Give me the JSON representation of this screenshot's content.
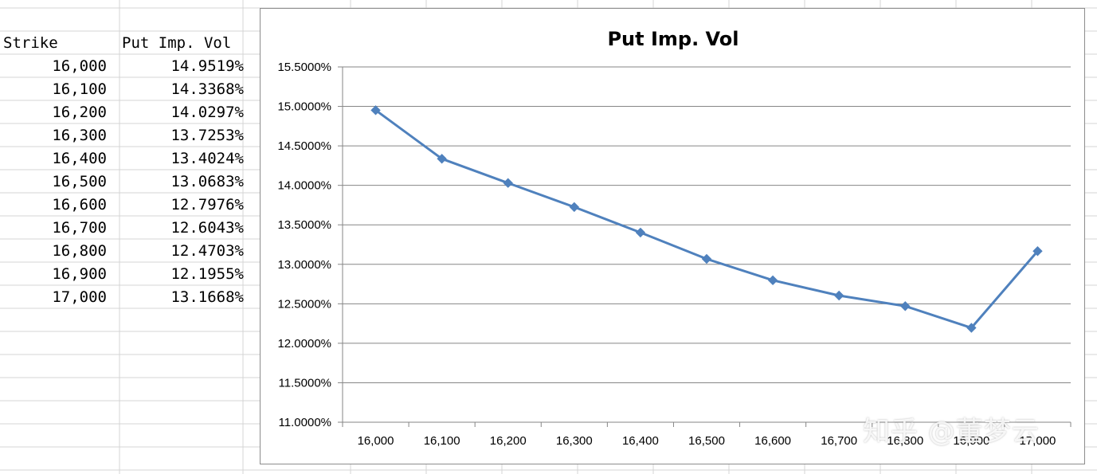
{
  "table": {
    "header_strike": "Strike",
    "header_vol": "Put Imp. Vol",
    "rows": [
      {
        "strike": "16,000",
        "vol": "14.9519%"
      },
      {
        "strike": "16,100",
        "vol": "14.3368%"
      },
      {
        "strike": "16,200",
        "vol": "14.0297%"
      },
      {
        "strike": "16,300",
        "vol": "13.7253%"
      },
      {
        "strike": "16,400",
        "vol": "13.4024%"
      },
      {
        "strike": "16,500",
        "vol": "13.0683%"
      },
      {
        "strike": "16,600",
        "vol": "12.7976%"
      },
      {
        "strike": "16,700",
        "vol": "12.6043%"
      },
      {
        "strike": "16,800",
        "vol": "12.4703%"
      },
      {
        "strike": "16,900",
        "vol": "12.1955%"
      },
      {
        "strike": "17,000",
        "vol": "13.1668%"
      }
    ]
  },
  "watermark": "知乎 @董梦云",
  "chart_data": {
    "type": "line",
    "title": "Put Imp. Vol",
    "xlabel": "",
    "ylabel": "",
    "categories": [
      "16,000",
      "16,100",
      "16,200",
      "16,300",
      "16,400",
      "16,500",
      "16,600",
      "16,700",
      "16,800",
      "16,900",
      "17,000"
    ],
    "series": [
      {
        "values": [
          14.9519,
          14.3368,
          14.0297,
          13.7253,
          13.4024,
          13.0683,
          12.7976,
          12.6043,
          12.4703,
          12.1955,
          13.1668
        ]
      }
    ],
    "ylim": [
      11.0,
      15.5
    ],
    "ytick_step": 0.5,
    "ytick_labels": [
      "11.0000%",
      "11.5000%",
      "12.0000%",
      "12.5000%",
      "13.0000%",
      "13.5000%",
      "14.0000%",
      "14.5000%",
      "15.0000%",
      "15.5000%"
    ],
    "grid": true,
    "legend": "none",
    "colors": {
      "line": "#4F81BD",
      "grid": "#868686"
    },
    "marker": "diamond"
  }
}
